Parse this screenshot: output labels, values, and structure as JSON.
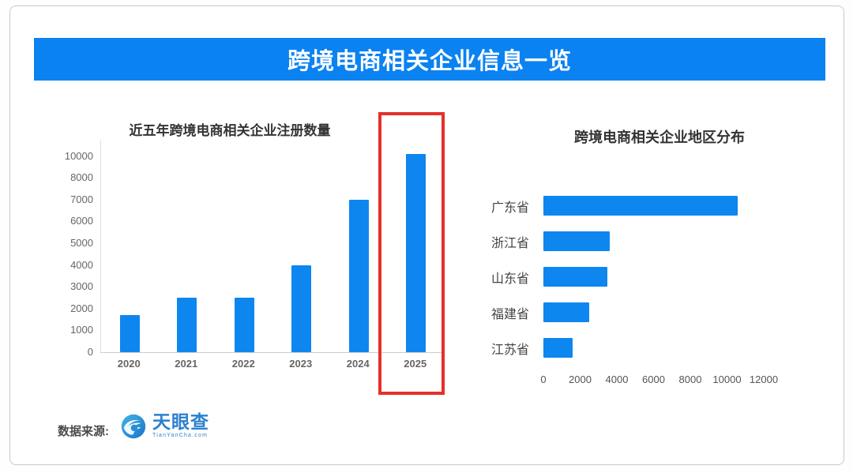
{
  "banner": {
    "title": "跨境电商相关企业信息一览"
  },
  "footer": {
    "source_label": "数据来源:",
    "logo_text": "天眼查",
    "logo_subtext": "TianYanCha.com"
  },
  "colors": {
    "banner_blue": "#0b82f1",
    "bar_blue": "#0e86f0",
    "highlight_red": "#e5302a",
    "logo_blue": "#2d80cf"
  },
  "chart_data": [
    {
      "type": "bar",
      "orientation": "vertical",
      "title": "近五年跨境电商相关企业注册数量",
      "categories": [
        "2020",
        "2021",
        "2022",
        "2023",
        "2024",
        "2025"
      ],
      "values": [
        1700,
        2500,
        2500,
        4000,
        7000,
        10200
      ],
      "y_ticks_bottom_to_top": [
        0,
        1000,
        2000,
        3000,
        4000,
        5000,
        6000,
        7000,
        8000,
        10000
      ],
      "axis_note": "tick labels evenly spaced; 9000 omitted between 8000 and 10000",
      "grid": false,
      "annotation": "2025 column framed by red highlight rectangle"
    },
    {
      "type": "bar",
      "orientation": "horizontal",
      "title": "跨境电商相关企业地区分布",
      "categories": [
        "广东省",
        "浙江省",
        "山东省",
        "福建省",
        "江苏省"
      ],
      "values": [
        10600,
        3600,
        3500,
        2500,
        1600
      ],
      "x_ticks": [
        0,
        2000,
        4000,
        6000,
        8000,
        10000,
        12000
      ],
      "xlim": [
        0,
        12000
      ],
      "grid": false
    }
  ]
}
